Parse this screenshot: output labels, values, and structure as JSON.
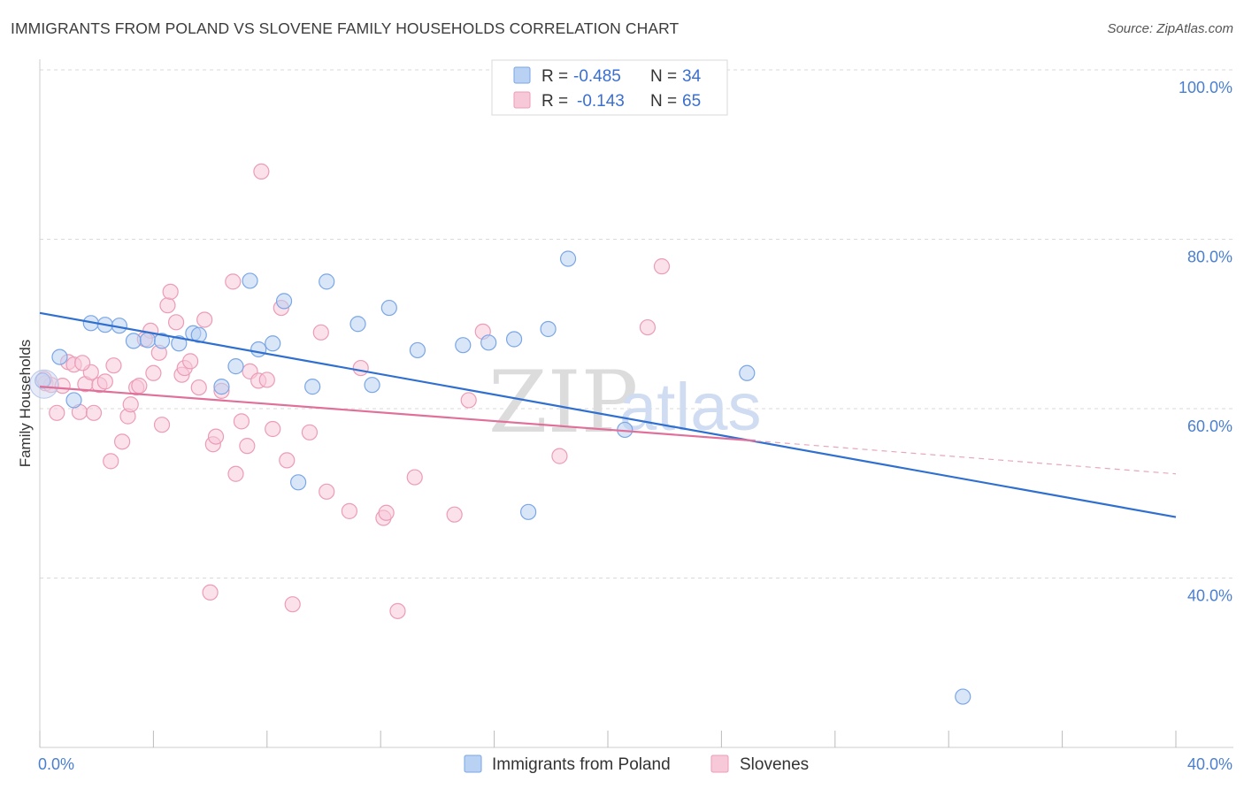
{
  "title": "IMMIGRANTS FROM POLAND VS SLOVENE FAMILY HOUSEHOLDS CORRELATION CHART",
  "source": "Source: ZipAtlas.com",
  "watermark": {
    "zip": "ZIP",
    "atlas": "atlas"
  },
  "chart_data": {
    "type": "scatter",
    "title": "IMMIGRANTS FROM POLAND VS SLOVENE FAMILY HOUSEHOLDS CORRELATION CHART",
    "xlabel": "",
    "ylabel": "Family Households",
    "xlim": [
      0,
      40
    ],
    "ylim": [
      20,
      100
    ],
    "x_tick_labels": [
      {
        "value": 0,
        "label": "0.0%"
      },
      {
        "value": 40,
        "label": "40.0%"
      }
    ],
    "y_tick_labels": [
      {
        "value": 100,
        "label": "100.0%"
      },
      {
        "value": 80,
        "label": "80.0%"
      },
      {
        "value": 60,
        "label": "60.0%"
      },
      {
        "value": 40,
        "label": "40.0%"
      }
    ],
    "grid": true,
    "legend_position": "top-center",
    "legend": [
      {
        "series": "Immigrants from Poland",
        "r_label": "R =",
        "r_value": "-0.485",
        "n_label": "N =",
        "n_value": "34"
      },
      {
        "series": "Slovenes",
        "r_label": "R =",
        "r_value": "-0.143",
        "n_label": "N =",
        "n_value": "65"
      }
    ],
    "series": [
      {
        "name": "Immigrants from Poland",
        "color": "#7aa6e6",
        "fill": "#b9d1f3",
        "trend": {
          "x": [
            0,
            40
          ],
          "y": [
            71.3,
            47.2
          ],
          "color": "#2f6fd0"
        },
        "points": [
          [
            0.1,
            63.3
          ],
          [
            0.7,
            66.1
          ],
          [
            1.2,
            61.0
          ],
          [
            1.8,
            70.1
          ],
          [
            2.3,
            69.9
          ],
          [
            2.8,
            69.8
          ],
          [
            3.3,
            68.0
          ],
          [
            3.8,
            68.1
          ],
          [
            4.3,
            68.0
          ],
          [
            4.9,
            67.7
          ],
          [
            5.4,
            68.9
          ],
          [
            5.6,
            68.7
          ],
          [
            6.4,
            62.6
          ],
          [
            6.9,
            65.0
          ],
          [
            7.4,
            75.1
          ],
          [
            7.7,
            67.0
          ],
          [
            8.2,
            67.7
          ],
          [
            8.6,
            72.7
          ],
          [
            9.1,
            51.3
          ],
          [
            9.6,
            62.6
          ],
          [
            10.1,
            75.0
          ],
          [
            11.2,
            70.0
          ],
          [
            11.7,
            62.8
          ],
          [
            12.3,
            71.9
          ],
          [
            13.3,
            66.9
          ],
          [
            14.9,
            67.5
          ],
          [
            15.8,
            67.8
          ],
          [
            16.7,
            68.2
          ],
          [
            17.2,
            47.8
          ],
          [
            17.9,
            69.4
          ],
          [
            18.6,
            77.7
          ],
          [
            20.6,
            57.5
          ],
          [
            24.9,
            64.2
          ],
          [
            32.5,
            26.0
          ]
        ]
      },
      {
        "name": "Slovenes",
        "color": "#ec9cb6",
        "fill": "#f7c9d8",
        "trend": {
          "x": [
            0,
            25.2
          ],
          "y": [
            62.6,
            56.2
          ],
          "color": "#e0709a"
        },
        "trend_dashed": {
          "x": [
            25.2,
            40
          ],
          "y": [
            56.2,
            52.3
          ],
          "color": "#e7a6bd"
        },
        "points": [
          [
            0.2,
            63.0
          ],
          [
            0.4,
            62.8
          ],
          [
            0.6,
            59.5
          ],
          [
            0.8,
            62.7
          ],
          [
            1.0,
            65.5
          ],
          [
            1.2,
            65.2
          ],
          [
            1.4,
            59.6
          ],
          [
            1.6,
            62.9
          ],
          [
            1.8,
            64.3
          ],
          [
            1.9,
            59.5
          ],
          [
            2.1,
            62.8
          ],
          [
            2.3,
            63.2
          ],
          [
            2.5,
            53.8
          ],
          [
            2.6,
            65.1
          ],
          [
            2.9,
            56.1
          ],
          [
            3.1,
            59.1
          ],
          [
            3.2,
            60.5
          ],
          [
            3.4,
            62.5
          ],
          [
            3.5,
            62.7
          ],
          [
            3.9,
            69.2
          ],
          [
            4.0,
            64.2
          ],
          [
            4.2,
            66.6
          ],
          [
            4.3,
            58.1
          ],
          [
            4.5,
            72.2
          ],
          [
            4.6,
            73.8
          ],
          [
            4.8,
            70.2
          ],
          [
            5.0,
            64.0
          ],
          [
            5.1,
            64.8
          ],
          [
            5.3,
            65.6
          ],
          [
            5.6,
            62.5
          ],
          [
            5.8,
            70.5
          ],
          [
            6.0,
            38.3
          ],
          [
            6.1,
            55.8
          ],
          [
            6.2,
            56.7
          ],
          [
            6.4,
            62.1
          ],
          [
            6.8,
            75.0
          ],
          [
            6.9,
            52.3
          ],
          [
            7.1,
            58.5
          ],
          [
            7.3,
            55.6
          ],
          [
            7.4,
            64.4
          ],
          [
            7.7,
            63.3
          ],
          [
            7.8,
            88.0
          ],
          [
            8.0,
            63.4
          ],
          [
            8.2,
            57.6
          ],
          [
            8.5,
            71.9
          ],
          [
            8.7,
            53.9
          ],
          [
            8.9,
            36.9
          ],
          [
            9.5,
            57.2
          ],
          [
            9.9,
            69.0
          ],
          [
            10.1,
            50.2
          ],
          [
            10.9,
            47.9
          ],
          [
            11.3,
            64.8
          ],
          [
            12.1,
            47.1
          ],
          [
            12.2,
            47.7
          ],
          [
            12.6,
            36.1
          ],
          [
            13.2,
            51.9
          ],
          [
            14.6,
            47.5
          ],
          [
            15.1,
            61.0
          ],
          [
            15.6,
            69.1
          ],
          [
            18.3,
            54.4
          ],
          [
            21.4,
            69.6
          ],
          [
            21.9,
            76.8
          ],
          [
            0.15,
            63.5
          ],
          [
            1.5,
            65.4
          ],
          [
            3.7,
            68.2
          ]
        ]
      }
    ]
  }
}
